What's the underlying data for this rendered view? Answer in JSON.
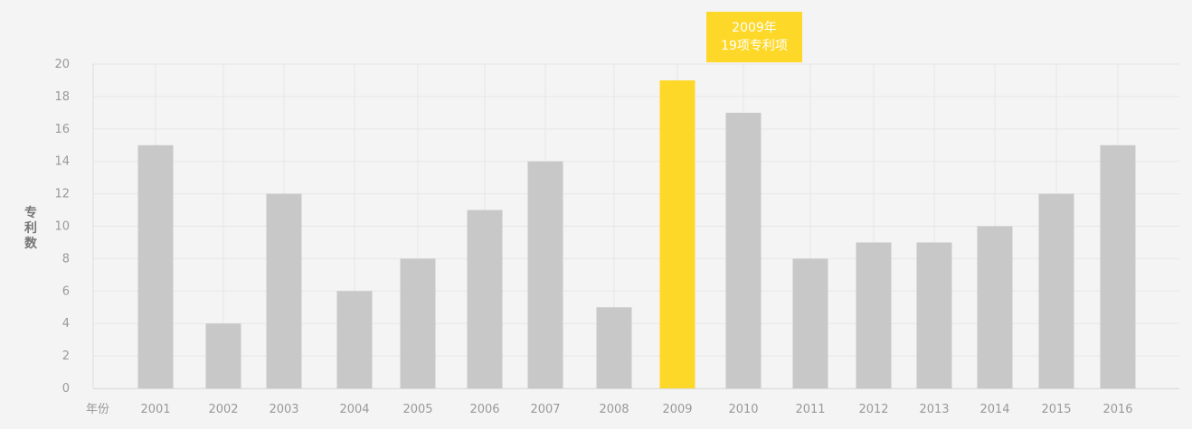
{
  "chart_data": {
    "type": "bar",
    "categories": [
      "2001",
      "2002",
      "2003",
      "2004",
      "2005",
      "2006",
      "2007",
      "2008",
      "2009",
      "2010",
      "2011",
      "2012",
      "2013",
      "2014",
      "2015",
      "2016"
    ],
    "values": [
      15,
      4,
      12,
      6,
      8,
      11,
      14,
      5,
      19,
      17,
      8,
      9,
      9,
      10,
      12,
      15
    ],
    "ylabel": "专利数",
    "xlabel": "年份",
    "ylim": [
      0,
      20
    ],
    "yticks": [
      0,
      2,
      4,
      6,
      8,
      10,
      12,
      14,
      16,
      18,
      20
    ],
    "grid": true,
    "highlight": {
      "category": "2009",
      "line1": "2009年",
      "line2": "19项专利项"
    },
    "colors": {
      "bar": "#c8c8c8",
      "highlight": "#fed829",
      "grid": "#e6e6e6",
      "axis_text": "#999999"
    }
  }
}
